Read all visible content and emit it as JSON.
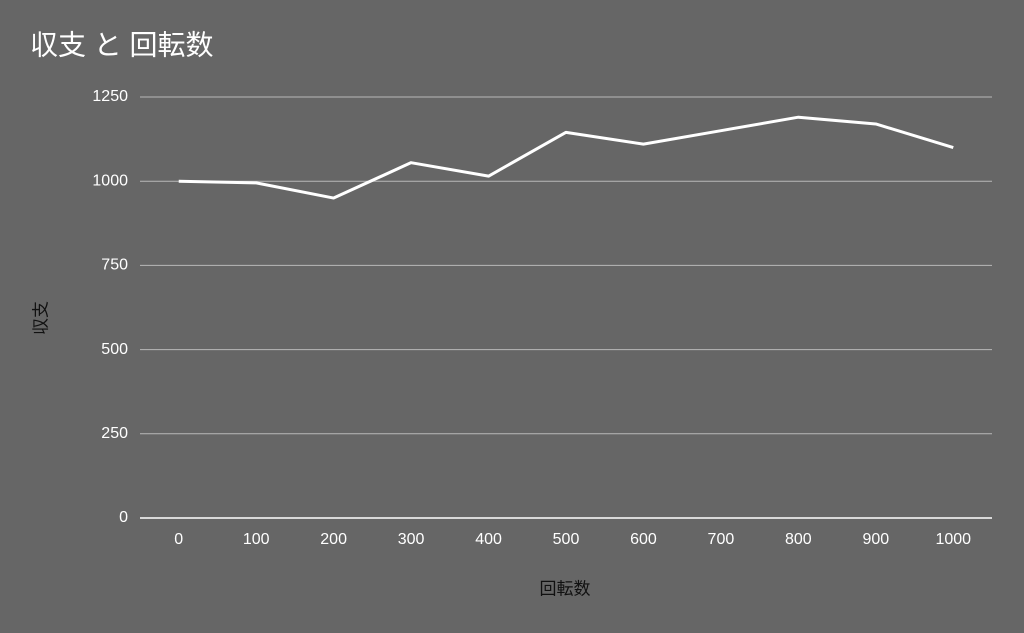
{
  "chart_data": {
    "type": "line",
    "title": "収支 と 回転数",
    "x_label": "回転数",
    "y_label": "収支",
    "categories": [
      "0",
      "100",
      "200",
      "300",
      "400",
      "500",
      "600",
      "700",
      "800",
      "900",
      "1000"
    ],
    "series": [
      {
        "name": "収支",
        "color": "#ffffff",
        "values": [
          1000,
          995,
          950,
          1055,
          1015,
          1145,
          1110,
          1150,
          1190,
          1170,
          1100
        ]
      }
    ],
    "ylim": [
      0,
      1250
    ],
    "yticks": [
      0,
      250,
      500,
      750,
      1000,
      1250
    ],
    "grid": true
  }
}
